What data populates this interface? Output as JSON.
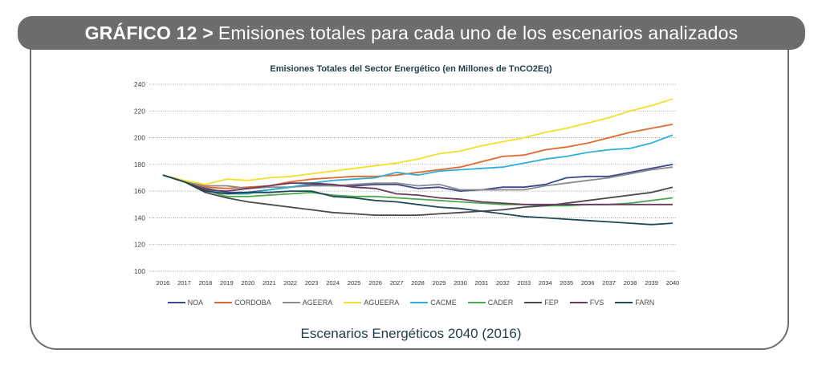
{
  "header": {
    "label_bold": "GRÁFICO 12 >",
    "label_text": "Emisiones totales para cada uno de los escenarios analizados"
  },
  "footer": {
    "source": "Escenarios Energéticos 2040 (2016)"
  },
  "chart_data": {
    "type": "line",
    "title": "Emisiones Totales del Sector Energético (en Millones de TnCO2Eq)",
    "xlabel": "",
    "ylabel": "",
    "ylim": [
      100,
      240
    ],
    "yticks": [
      100,
      120,
      140,
      160,
      180,
      200,
      220,
      240
    ],
    "grid": "horizontal-dotted",
    "legend_position": "bottom",
    "x": [
      "2016",
      "2017",
      "2018",
      "2019",
      "2020",
      "2021",
      "2022",
      "2023",
      "2024",
      "2025",
      "2026",
      "2027",
      "2028",
      "2029",
      "2030",
      "2031",
      "2032",
      "2033",
      "2034",
      "2035",
      "2036",
      "2037",
      "2038",
      "2039",
      "2040"
    ],
    "series": [
      {
        "name": "NOA",
        "color": "#3b4a8c",
        "values": [
          172,
          167,
          162,
          159,
          159,
          161,
          163,
          165,
          164,
          164,
          165,
          165,
          162,
          163,
          160,
          161,
          163,
          163,
          165,
          170,
          171,
          171,
          174,
          177,
          180
        ]
      },
      {
        "name": "CORDOBA",
        "color": "#e06a2e",
        "values": [
          172,
          167,
          163,
          162,
          163,
          164,
          167,
          169,
          170,
          171,
          171,
          172,
          174,
          176,
          178,
          182,
          186,
          187,
          191,
          193,
          196,
          200,
          204,
          207,
          210
        ]
      },
      {
        "name": "AGEERA",
        "color": "#8c8c8c",
        "values": [
          172,
          167,
          164,
          164,
          162,
          163,
          163,
          164,
          164,
          165,
          166,
          166,
          164,
          165,
          161,
          161,
          161,
          161,
          164,
          166,
          168,
          170,
          173,
          176,
          178
        ]
      },
      {
        "name": "AGUEERA",
        "color": "#f2e12a",
        "values": [
          172,
          168,
          165,
          169,
          168,
          170,
          171,
          173,
          175,
          177,
          179,
          181,
          184,
          188,
          190,
          194,
          197,
          200,
          204,
          207,
          211,
          215,
          220,
          224,
          229
        ]
      },
      {
        "name": "CACME",
        "color": "#2fb0d8",
        "values": [
          172,
          167,
          161,
          158,
          158,
          161,
          163,
          166,
          168,
          169,
          170,
          174,
          172,
          175,
          176,
          177,
          178,
          181,
          184,
          186,
          189,
          191,
          192,
          196,
          202
        ]
      },
      {
        "name": "CADER",
        "color": "#4caa4c",
        "values": [
          172,
          167,
          161,
          156,
          156,
          157,
          158,
          159,
          157,
          156,
          156,
          155,
          154,
          153,
          152,
          151,
          150,
          150,
          149,
          149,
          150,
          150,
          151,
          153,
          155
        ]
      },
      {
        "name": "FEP",
        "color": "#4a4a4e",
        "values": [
          172,
          167,
          159,
          155,
          152,
          150,
          148,
          146,
          144,
          143,
          142,
          142,
          142,
          143,
          144,
          145,
          146,
          148,
          149,
          151,
          153,
          155,
          157,
          159,
          163
        ]
      },
      {
        "name": "FVS",
        "color": "#6b3a5e",
        "values": [
          172,
          167,
          161,
          160,
          162,
          164,
          166,
          166,
          165,
          163,
          162,
          158,
          157,
          155,
          154,
          152,
          151,
          150,
          150,
          150,
          150,
          150,
          150,
          150,
          150
        ]
      },
      {
        "name": "FARN",
        "color": "#1f4a57",
        "values": [
          172,
          167,
          160,
          158,
          159,
          159,
          160,
          160,
          156,
          155,
          153,
          152,
          150,
          148,
          147,
          145,
          143,
          141,
          140,
          139,
          138,
          137,
          136,
          135,
          136
        ]
      }
    ]
  }
}
